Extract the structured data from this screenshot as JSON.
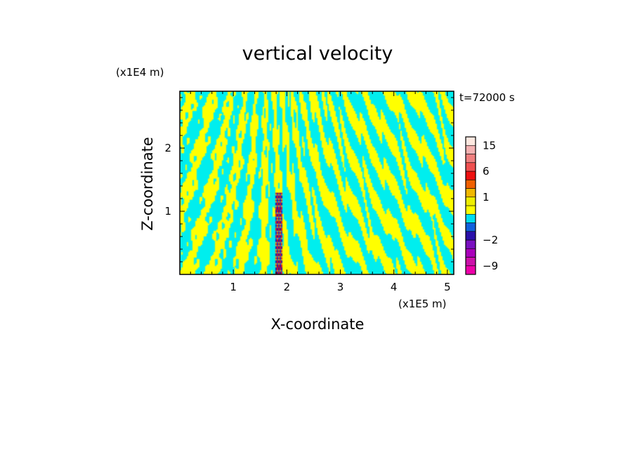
{
  "chart_data": {
    "type": "heatmap",
    "title": "vertical velocity",
    "time_label": "t=72000 s",
    "xlabel": "X-coordinate",
    "ylabel": "Z-coordinate",
    "x_unit": "(x1E5 m)",
    "y_unit": "(x1E4 m)",
    "xlim": [
      0,
      5.12
    ],
    "ylim": [
      0,
      2.9
    ],
    "x_ticks": [
      1,
      2,
      3,
      4,
      5
    ],
    "y_ticks": [
      1,
      2
    ],
    "x_tick_labels": [
      "1",
      "2",
      "3",
      "4",
      "5"
    ],
    "y_tick_labels": [
      "1",
      "2"
    ],
    "colorbar": {
      "labels": [
        "15",
        "6",
        "1",
        "−2",
        "−9"
      ],
      "label_levels": [
        15,
        6,
        1,
        -2,
        -9
      ],
      "levels": [
        -12,
        -9,
        -6,
        -4,
        -2,
        -1,
        -0.5,
        0,
        0.5,
        1,
        2,
        4,
        6,
        9,
        12,
        15,
        20
      ],
      "colors": [
        "#ee00aa",
        "#cc11aa",
        "#aa00bb",
        "#7a10c0",
        "#2a10aa",
        "#1060dd",
        "#00ddf0",
        "#ffff00",
        "#eeee00",
        "#f0b800",
        "#f06000",
        "#ee1010",
        "#f05050",
        "#f07f7f",
        "#f4b2b2",
        "#fde8e0"
      ]
    },
    "field": {
      "dominant_positive_color": "#ffff00",
      "dominant_negative_color": "#00eeee",
      "strong_updraft_x": 1.85,
      "strong_updraft_z_range": [
        0,
        1.3
      ]
    }
  }
}
